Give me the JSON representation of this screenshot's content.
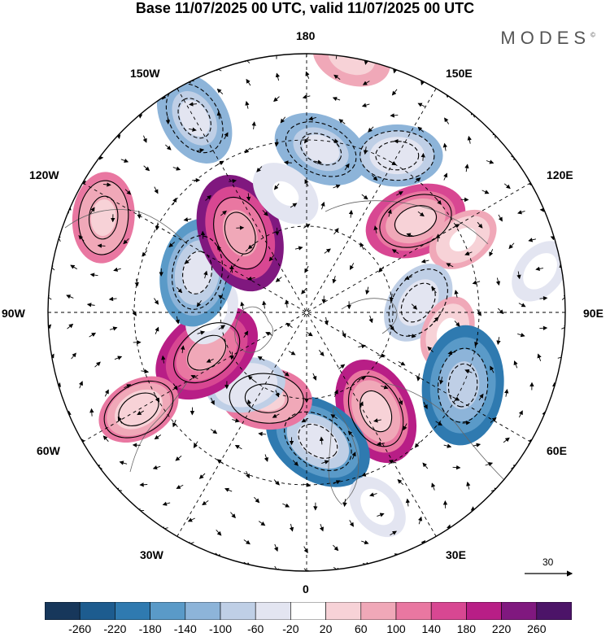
{
  "title": "Base 11/07/2025 00 UTC, valid 11/07/2025 00 UTC",
  "brand": "MODES",
  "brand_mark": "©",
  "longitude_labels": {
    "top": "180",
    "top_left": "150W",
    "top_right": "150E",
    "upper_left": "120W",
    "upper_right": "120E",
    "left": "90W",
    "right": "90E",
    "lower_left": "60W",
    "lower_right": "60E",
    "bottom_left": "30W",
    "bottom_right": "30E",
    "bottom": "0"
  },
  "vector_scale_label": "30",
  "colorbar": {
    "tick_labels": [
      "-260",
      "-220",
      "-180",
      "-140",
      "-100",
      "-60",
      "-20",
      "20",
      "60",
      "100",
      "140",
      "180",
      "220",
      "260"
    ],
    "colors": [
      "#17375b",
      "#1d5c8f",
      "#2f7ab0",
      "#5a9ac8",
      "#8db4d9",
      "#bfcfe6",
      "#e3e5f1",
      "#ffffff",
      "#f7d2d7",
      "#f0a8b8",
      "#e977a1",
      "#d84792",
      "#b81e86",
      "#80187f",
      "#4c1468"
    ]
  },
  "anomaly_centers": [
    {
      "lon": 175,
      "colat": 38,
      "value": -140
    },
    {
      "lon": 150,
      "colat": 42,
      "value": -120
    },
    {
      "lon": 130,
      "colat": 33,
      "value": 160
    },
    {
      "lon": 115,
      "colat": 40,
      "value": 60
    },
    {
      "lon": 95,
      "colat": 26,
      "value": -100
    },
    {
      "lon": 82,
      "colat": 33,
      "value": 60
    },
    {
      "lon": 65,
      "colat": 40,
      "value": -220
    },
    {
      "lon": 35,
      "colat": 28,
      "value": 180
    },
    {
      "lon": 5,
      "colat": 30,
      "value": -200
    },
    {
      "lon": -25,
      "colat": 22,
      "value": 120
    },
    {
      "lon": -40,
      "colat": 22,
      "value": -80
    },
    {
      "lon": -68,
      "colat": 25,
      "value": 200
    },
    {
      "lon": -90,
      "colat": 22,
      "value": -40
    },
    {
      "lon": -110,
      "colat": 27,
      "value": -180
    },
    {
      "lon": -140,
      "colat": 24,
      "value": 220
    },
    {
      "lon": -115,
      "colat": 52,
      "value": 120
    },
    {
      "lon": -150,
      "colat": 52,
      "value": -140
    },
    {
      "lon": 170,
      "colat": 60,
      "value": 80
    },
    {
      "lon": -60,
      "colat": 45,
      "value": 100
    },
    {
      "lon": -170,
      "colat": 28,
      "value": -60
    },
    {
      "lon": 100,
      "colat": 55,
      "value": -40
    },
    {
      "lon": 20,
      "colat": 48,
      "value": -40
    }
  ]
}
